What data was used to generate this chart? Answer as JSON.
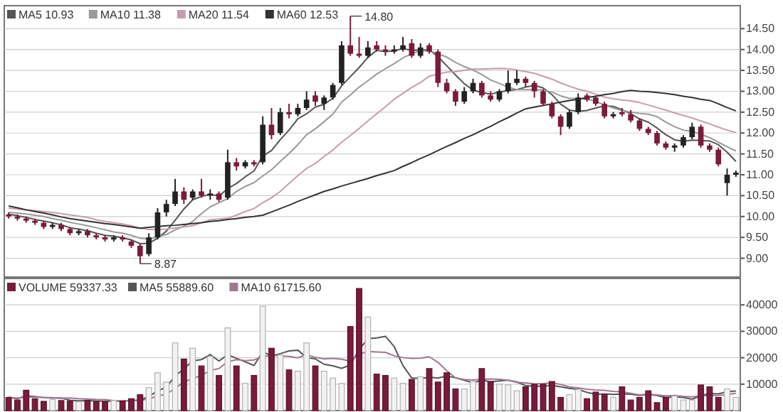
{
  "chart_data": [
    {
      "type": "candlestick",
      "ylim": [
        8.55,
        15.05
      ],
      "tick_labels": "y",
      "grid": "y",
      "legend": "top left",
      "categories": [
        null,
        null,
        null,
        null,
        null,
        null,
        null,
        null,
        null,
        null,
        null,
        null,
        null,
        null,
        null,
        null,
        null,
        null,
        null,
        null,
        null,
        null,
        null,
        null,
        null,
        null,
        null,
        null,
        null,
        null,
        null,
        null,
        null,
        null,
        null,
        null,
        null,
        null,
        null,
        null,
        null,
        null,
        null,
        null,
        null,
        null,
        null,
        null,
        null,
        null,
        null,
        null,
        null,
        null,
        null,
        null,
        null,
        null,
        null,
        null,
        null,
        null,
        null,
        null,
        null,
        null,
        null,
        null,
        null,
        null,
        null,
        null,
        null,
        null,
        null,
        null,
        null,
        null,
        null,
        null,
        null,
        null,
        null,
        null
      ],
      "yticks": [
        {
          "value": 9,
          "label": "9.00"
        },
        {
          "value": 9.5,
          "label": "9.50"
        },
        {
          "value": 10,
          "label": "10.00"
        },
        {
          "value": 10.5,
          "label": "10.50"
        },
        {
          "value": 11,
          "label": "11.00"
        },
        {
          "value": 11.5,
          "label": "11.50"
        },
        {
          "value": 12,
          "label": "12.00"
        },
        {
          "value": 12.5,
          "label": "12.50"
        },
        {
          "value": 13,
          "label": "13.00"
        },
        {
          "value": 13.5,
          "label": "13.50"
        },
        {
          "value": 14,
          "label": "14.00"
        },
        {
          "value": 14.5,
          "label": "14.50"
        }
      ],
      "annotations": [
        "14.80",
        "8.87"
      ],
      "series": [
        {
          "ohlc": [
            [
              10.05,
              10.1,
              9.95,
              10.0
            ],
            [
              10.0,
              10.05,
              9.9,
              9.95
            ],
            [
              9.95,
              10.0,
              9.85,
              9.9
            ],
            [
              9.9,
              9.95,
              9.8,
              9.85
            ],
            [
              9.85,
              9.9,
              9.7,
              9.75
            ],
            [
              9.75,
              9.85,
              9.7,
              9.8
            ],
            [
              9.8,
              9.85,
              9.65,
              9.7
            ],
            [
              9.7,
              9.75,
              9.55,
              9.6
            ],
            [
              9.6,
              9.7,
              9.55,
              9.65
            ],
            [
              9.65,
              9.7,
              9.5,
              9.55
            ],
            [
              9.55,
              9.6,
              9.45,
              9.5
            ],
            [
              9.5,
              9.55,
              9.4,
              9.45
            ],
            [
              9.45,
              9.55,
              9.4,
              9.5
            ],
            [
              9.5,
              9.55,
              9.4,
              9.45
            ],
            [
              9.4,
              9.45,
              9.25,
              9.3
            ],
            [
              9.3,
              9.35,
              8.87,
              9.05
            ],
            [
              9.1,
              9.6,
              9.05,
              9.5
            ],
            [
              9.5,
              10.2,
              9.45,
              10.1
            ],
            [
              10.1,
              10.4,
              10.0,
              10.3
            ],
            [
              10.3,
              10.9,
              10.25,
              10.6
            ],
            [
              10.6,
              10.7,
              10.3,
              10.4
            ],
            [
              10.45,
              10.65,
              10.4,
              10.6
            ],
            [
              10.6,
              10.9,
              10.45,
              10.5
            ],
            [
              10.5,
              10.65,
              10.4,
              10.55
            ],
            [
              10.55,
              10.6,
              10.35,
              10.4
            ],
            [
              10.45,
              11.6,
              10.4,
              11.3
            ],
            [
              11.3,
              11.4,
              11.1,
              11.2
            ],
            [
              11.2,
              11.35,
              11.15,
              11.3
            ],
            [
              11.3,
              11.35,
              11.2,
              11.25
            ],
            [
              11.3,
              12.4,
              11.25,
              12.2
            ],
            [
              12.2,
              12.6,
              11.85,
              11.95
            ],
            [
              12.0,
              12.6,
              11.95,
              12.5
            ],
            [
              12.5,
              12.7,
              12.35,
              12.45
            ],
            [
              12.45,
              12.7,
              12.4,
              12.6
            ],
            [
              12.6,
              13.0,
              12.55,
              12.8
            ],
            [
              12.9,
              13.0,
              12.65,
              12.75
            ],
            [
              12.7,
              12.9,
              12.55,
              12.85
            ],
            [
              12.85,
              13.2,
              12.8,
              13.15
            ],
            [
              13.2,
              14.2,
              13.15,
              14.1
            ],
            [
              14.1,
              14.8,
              13.85,
              13.9
            ],
            [
              13.9,
              14.3,
              13.8,
              13.85
            ],
            [
              13.85,
              14.2,
              13.8,
              14.05
            ],
            [
              14.1,
              14.2,
              13.95,
              14.0
            ],
            [
              14.0,
              14.1,
              13.85,
              13.95
            ],
            [
              13.95,
              14.1,
              13.9,
              14.0
            ],
            [
              14.0,
              14.3,
              13.95,
              14.1
            ],
            [
              14.15,
              14.25,
              13.8,
              13.85
            ],
            [
              13.85,
              14.15,
              13.8,
              14.05
            ],
            [
              14.1,
              14.15,
              13.9,
              13.95
            ],
            [
              13.95,
              14.0,
              13.1,
              13.2
            ],
            [
              13.2,
              13.3,
              12.95,
              13.0
            ],
            [
              13.0,
              13.05,
              12.65,
              12.75
            ],
            [
              12.75,
              13.1,
              12.7,
              13.0
            ],
            [
              13.0,
              13.3,
              12.95,
              13.2
            ],
            [
              13.2,
              13.25,
              12.85,
              12.9
            ],
            [
              12.9,
              13.0,
              12.75,
              12.8
            ],
            [
              12.8,
              13.05,
              12.75,
              13.0
            ],
            [
              13.0,
              13.5,
              12.95,
              13.2
            ],
            [
              13.2,
              13.5,
              13.15,
              13.3
            ],
            [
              13.3,
              13.35,
              13.1,
              13.2
            ],
            [
              13.2,
              13.25,
              12.85,
              13.0
            ],
            [
              13.0,
              13.05,
              12.65,
              12.7
            ],
            [
              12.7,
              12.75,
              12.35,
              12.4
            ],
            [
              12.4,
              12.45,
              11.95,
              12.15
            ],
            [
              12.15,
              12.55,
              12.1,
              12.5
            ],
            [
              12.5,
              12.95,
              12.45,
              12.85
            ],
            [
              12.9,
              12.95,
              12.75,
              12.8
            ],
            [
              12.85,
              12.9,
              12.65,
              12.7
            ],
            [
              12.7,
              12.75,
              12.35,
              12.4
            ],
            [
              12.4,
              12.5,
              12.35,
              12.45
            ],
            [
              12.5,
              12.6,
              12.4,
              12.45
            ],
            [
              12.45,
              12.55,
              12.25,
              12.3
            ],
            [
              12.3,
              12.35,
              12.05,
              12.1
            ],
            [
              12.1,
              12.15,
              11.95,
              12.0
            ],
            [
              12.0,
              12.05,
              11.7,
              11.75
            ],
            [
              11.75,
              11.8,
              11.6,
              11.65
            ],
            [
              11.65,
              11.75,
              11.55,
              11.7
            ],
            [
              11.7,
              11.95,
              11.65,
              11.9
            ],
            [
              11.9,
              12.25,
              11.85,
              12.15
            ],
            [
              12.15,
              12.2,
              11.65,
              11.7
            ],
            [
              11.7,
              11.75,
              11.55,
              11.6
            ],
            [
              11.6,
              11.65,
              11.2,
              11.25
            ],
            [
              10.8,
              11.15,
              10.5,
              11.0
            ],
            [
              11.0,
              11.1,
              10.95,
              11.05
            ]
          ],
          "colors": [
            "#7a1a3c",
            "#7a1a3c",
            "#7a1a3c",
            "#7a1a3c",
            "#7a1a3c",
            "#222222",
            "#7a1a3c",
            "#7a1a3c",
            "#222222",
            "#7a1a3c",
            "#7a1a3c",
            "#7a1a3c",
            "#222222",
            "#7a1a3c",
            "#7a1a3c",
            "#7a1a3c",
            "#222222",
            "#222222",
            "#222222",
            "#222222",
            "#7a1a3c",
            "#222222",
            "#7a1a3c",
            "#222222",
            "#7a1a3c",
            "#222222",
            "#7a1a3c",
            "#222222",
            "#7a1a3c",
            "#222222",
            "#7a1a3c",
            "#222222",
            "#7a1a3c",
            "#222222",
            "#222222",
            "#7a1a3c",
            "#222222",
            "#222222",
            "#222222",
            "#7a1a3c",
            "#7a1a3c",
            "#222222",
            "#7a1a3c",
            "#7a1a3c",
            "#222222",
            "#222222",
            "#7a1a3c",
            "#222222",
            "#7a1a3c",
            "#7a1a3c",
            "#7a1a3c",
            "#7a1a3c",
            "#222222",
            "#222222",
            "#7a1a3c",
            "#7a1a3c",
            "#222222",
            "#222222",
            "#222222",
            "#7a1a3c",
            "#7a1a3c",
            "#7a1a3c",
            "#7a1a3c",
            "#7a1a3c",
            "#222222",
            "#222222",
            "#7a1a3c",
            "#7a1a3c",
            "#7a1a3c",
            "#222222",
            "#7a1a3c",
            "#7a1a3c",
            "#7a1a3c",
            "#7a1a3c",
            "#7a1a3c",
            "#7a1a3c",
            "#222222",
            "#222222",
            "#222222",
            "#7a1a3c",
            "#7a1a3c",
            "#7a1a3c",
            "#222222",
            "#222222"
          ]
        },
        {
          "type": "line",
          "name": "MA5 10.93",
          "color": "#555555",
          "values": [
            10.05,
            10.02,
            9.98,
            9.93,
            9.89,
            9.85,
            9.8,
            9.73,
            9.7,
            9.66,
            9.6,
            9.55,
            9.53,
            9.49,
            9.44,
            9.35,
            9.36,
            9.48,
            9.65,
            9.91,
            10.18,
            10.4,
            10.48,
            10.53,
            10.49,
            10.67,
            10.79,
            10.95,
            11.09,
            11.45,
            11.58,
            11.84,
            12.07,
            12.34,
            12.46,
            12.62,
            12.69,
            12.83,
            13.13,
            13.35,
            13.57,
            13.81,
            13.98,
            13.95,
            13.97,
            14.02,
            13.98,
            13.99,
            13.99,
            13.83,
            13.61,
            13.39,
            13.18,
            13.03,
            12.97,
            12.93,
            12.98,
            13.02,
            13.04,
            13.1,
            13.14,
            13.08,
            12.92,
            12.69,
            12.55,
            12.52,
            12.54,
            12.6,
            12.65,
            12.64,
            12.56,
            12.46,
            12.34,
            12.26,
            12.12,
            11.96,
            11.84,
            11.8,
            11.83,
            11.82,
            11.81,
            11.72,
            11.54,
            11.32
          ]
        },
        {
          "type": "line",
          "name": "MA10 11.38",
          "color": "#999999",
          "values": [
            10.1,
            10.08,
            10.06,
            10.03,
            10.0,
            9.95,
            9.91,
            9.86,
            9.82,
            9.78,
            9.73,
            9.68,
            9.63,
            9.6,
            9.55,
            9.48,
            9.46,
            9.51,
            9.57,
            9.68,
            9.77,
            9.88,
            10.07,
            10.23,
            10.33,
            10.43,
            10.6,
            10.72,
            10.81,
            10.97,
            11.12,
            11.32,
            11.51,
            11.72,
            11.96,
            12.1,
            12.27,
            12.45,
            12.74,
            12.91,
            13.1,
            13.25,
            13.41,
            13.54,
            13.66,
            13.8,
            13.9,
            13.97,
            13.97,
            13.9,
            13.82,
            13.69,
            13.59,
            13.51,
            13.4,
            13.27,
            13.19,
            13.1,
            13.04,
            13.04,
            13.04,
            13.03,
            12.98,
            12.89,
            12.83,
            12.83,
            12.81,
            12.76,
            12.67,
            12.6,
            12.54,
            12.5,
            12.47,
            12.45,
            12.39,
            12.26,
            12.15,
            12.07,
            12.04,
            11.97,
            11.89,
            11.78,
            11.67,
            11.57
          ]
        },
        {
          "type": "line",
          "name": "MA20 11.54",
          "color": "#c89cb0",
          "values": [
            10.2,
            10.18,
            10.16,
            10.14,
            10.12,
            10.1,
            10.07,
            10.04,
            10.01,
            9.98,
            9.92,
            9.88,
            9.85,
            9.82,
            9.78,
            9.72,
            9.69,
            9.69,
            9.7,
            9.73,
            9.75,
            9.78,
            9.85,
            9.92,
            9.94,
            9.96,
            10.03,
            10.12,
            10.19,
            10.33,
            10.45,
            10.6,
            10.79,
            10.98,
            11.15,
            11.27,
            11.44,
            11.59,
            11.78,
            11.94,
            12.11,
            12.29,
            12.46,
            12.63,
            12.81,
            12.95,
            13.09,
            13.21,
            13.36,
            13.41,
            13.46,
            13.47,
            13.5,
            13.53,
            13.53,
            13.54,
            13.55,
            13.54,
            13.51,
            13.47,
            13.43,
            13.36,
            13.29,
            13.2,
            13.12,
            13.05,
            13.0,
            12.93,
            12.86,
            12.82,
            12.79,
            12.77,
            12.73,
            12.67,
            12.61,
            12.55,
            12.48,
            12.42,
            12.36,
            12.29,
            12.22,
            12.14,
            12.07,
            12.01
          ]
        },
        {
          "type": "line",
          "name": "MA60 12.53",
          "color": "#333333",
          "values": [
            10.25,
            10.21,
            10.16,
            10.12,
            10.08,
            10.04,
            9.99,
            9.95,
            9.92,
            9.89,
            9.86,
            9.83,
            9.81,
            9.78,
            9.75,
            9.72,
            9.74,
            9.76,
            9.78,
            9.79,
            9.81,
            9.83,
            9.85,
            9.88,
            9.9,
            9.93,
            9.95,
            9.98,
            10.0,
            10.03,
            10.11,
            10.19,
            10.27,
            10.36,
            10.44,
            10.52,
            10.6,
            10.66,
            10.73,
            10.79,
            10.85,
            10.91,
            10.98,
            11.04,
            11.1,
            11.2,
            11.29,
            11.39,
            11.48,
            11.58,
            11.68,
            11.77,
            11.87,
            11.96,
            12.06,
            12.16,
            12.27,
            12.37,
            12.48,
            12.58,
            12.62,
            12.66,
            12.7,
            12.74,
            12.78,
            12.81,
            12.85,
            12.88,
            12.92,
            12.95,
            12.99,
            13.02,
            13.0,
            12.99,
            12.97,
            12.95,
            12.92,
            12.88,
            12.85,
            12.81,
            12.78,
            12.7,
            12.61,
            12.53
          ]
        }
      ]
    },
    {
      "type": "bar",
      "ylim": [
        0,
        50000
      ],
      "tick_labels": "y",
      "grid": "y",
      "legend": "top left",
      "yticks": [
        10000,
        20000,
        30000,
        40000
      ],
      "categories": [
        null,
        null,
        null,
        null,
        null,
        null,
        null,
        null,
        null,
        null,
        null,
        null,
        null,
        null,
        null,
        null,
        null,
        null,
        null,
        null,
        null,
        null,
        null,
        null,
        null,
        null,
        null,
        null,
        null,
        null,
        null,
        null,
        null,
        null,
        null,
        null,
        null,
        null,
        null,
        null,
        null,
        null,
        null,
        null,
        null,
        null,
        null,
        null,
        null,
        null,
        null,
        null,
        null,
        null,
        null,
        null,
        null,
        null,
        null,
        null,
        null,
        null,
        null,
        null,
        null,
        null,
        null,
        null,
        null,
        null,
        null,
        null,
        null,
        null,
        null,
        null,
        null,
        null,
        null,
        null,
        null,
        null,
        null,
        null
      ],
      "series": [
        {
          "name": "VOLUME 59337.33",
          "values": [
            5000,
            4000,
            7700,
            4500,
            3500,
            4200,
            3800,
            3600,
            3400,
            3900,
            3500,
            3300,
            3800,
            3600,
            4500,
            6000,
            8700,
            14300,
            10800,
            25600,
            19500,
            23600,
            16900,
            20500,
            13300,
            31300,
            16900,
            10300,
            13300,
            39500,
            23600,
            21000,
            15400,
            14900,
            25600,
            16900,
            14900,
            12300,
            10300,
            31800,
            46200,
            35400,
            13800,
            13300,
            12300,
            10300,
            11800,
            12800,
            15900,
            10800,
            14300,
            8200,
            8200,
            11000,
            15900,
            11000,
            10000,
            9700,
            7500,
            9000,
            10000,
            10000,
            11000,
            5000,
            6000,
            8000,
            4500,
            7000,
            6000,
            5000,
            9000,
            4000,
            5000,
            7500,
            3000,
            5000,
            5500,
            4000,
            4000,
            9700,
            9000,
            5000,
            8200,
            5000
          ],
          "colors": [
            "#7a1a3c",
            "#7a1a3c",
            "#7a1a3c",
            "#7a1a3c",
            "#7a1a3c",
            "#f2f2f2",
            "#7a1a3c",
            "#7a1a3c",
            "#f2f2f2",
            "#7a1a3c",
            "#7a1a3c",
            "#7a1a3c",
            "#f2f2f2",
            "#7a1a3c",
            "#7a1a3c",
            "#7a1a3c",
            "#f2f2f2",
            "#f2f2f2",
            "#f2f2f2",
            "#f2f2f2",
            "#7a1a3c",
            "#f2f2f2",
            "#7a1a3c",
            "#f2f2f2",
            "#7a1a3c",
            "#f2f2f2",
            "#7a1a3c",
            "#f2f2f2",
            "#7a1a3c",
            "#f2f2f2",
            "#7a1a3c",
            "#f2f2f2",
            "#7a1a3c",
            "#f2f2f2",
            "#f2f2f2",
            "#7a1a3c",
            "#f2f2f2",
            "#f2f2f2",
            "#f2f2f2",
            "#7a1a3c",
            "#7a1a3c",
            "#f2f2f2",
            "#7a1a3c",
            "#7a1a3c",
            "#f2f2f2",
            "#f2f2f2",
            "#7a1a3c",
            "#f2f2f2",
            "#7a1a3c",
            "#7a1a3c",
            "#7a1a3c",
            "#7a1a3c",
            "#f2f2f2",
            "#f2f2f2",
            "#7a1a3c",
            "#7a1a3c",
            "#f2f2f2",
            "#f2f2f2",
            "#f2f2f2",
            "#7a1a3c",
            "#7a1a3c",
            "#7a1a3c",
            "#7a1a3c",
            "#7a1a3c",
            "#f2f2f2",
            "#f2f2f2",
            "#7a1a3c",
            "#7a1a3c",
            "#7a1a3c",
            "#f2f2f2",
            "#7a1a3c",
            "#7a1a3c",
            "#7a1a3c",
            "#7a1a3c",
            "#7a1a3c",
            "#7a1a3c",
            "#f2f2f2",
            "#f2f2f2",
            "#f2f2f2",
            "#7a1a3c",
            "#7a1a3c",
            "#7a1a3c",
            "#f2f2f2",
            "#f2f2f2"
          ]
        },
        {
          "type": "line",
          "name": "MA5 55889.60",
          "color": "#555555",
          "values": [
            5000,
            4500,
            5570,
            5300,
            4940,
            4780,
            4740,
            3920,
            3700,
            3780,
            3640,
            3540,
            3580,
            3620,
            3740,
            4040,
            5320,
            7420,
            8860,
            13080,
            15780,
            18800,
            19280,
            21220,
            18760,
            21120,
            19800,
            18460,
            17060,
            22260,
            20720,
            21540,
            22560,
            22880,
            20100,
            19560,
            17540,
            16920,
            16000,
            17240,
            23100,
            27200,
            27500,
            28100,
            24200,
            17020,
            12340,
            12100,
            12620,
            12320,
            13120,
            12400,
            11480,
            10500,
            11520,
            10860,
            11220,
            11520,
            10820,
            9440,
            9240,
            9240,
            9500,
            9000,
            8400,
            8000,
            6900,
            6100,
            6300,
            6100,
            6300,
            6200,
            5800,
            6100,
            5700,
            4900,
            5200,
            5000,
            4300,
            5640,
            6440,
            6340,
            7180,
            7380
          ]
        },
        {
          "type": "line",
          "name": "MA10 61715.60",
          "color": "#a07890",
          "values": [
            5000,
            4700,
            5200,
            5100,
            5000,
            4890,
            4620,
            4740,
            4500,
            4360,
            4210,
            4140,
            3750,
            3660,
            3760,
            3840,
            4430,
            5500,
            6240,
            8410,
            10910,
            12060,
            13350,
            15150,
            15920,
            18450,
            19300,
            18870,
            19140,
            20510,
            20920,
            20670,
            20510,
            19970,
            21180,
            20140,
            19540,
            19740,
            19440,
            18670,
            21330,
            22370,
            22210,
            22050,
            20720,
            20060,
            19770,
            19800,
            20360,
            18260,
            15070,
            12370,
            11790,
            11560,
            11920,
            11990,
            11810,
            11500,
            10660,
            10480,
            10050,
            10230,
            10510,
            9910,
            8920,
            8620,
            8070,
            7800,
            7650,
            7250,
            7150,
            6550,
            5950,
            6200,
            5900,
            5600,
            5700,
            5400,
            5200,
            5670,
            5670,
            5770,
            6090,
            6510
          ]
        }
      ]
    }
  ]
}
